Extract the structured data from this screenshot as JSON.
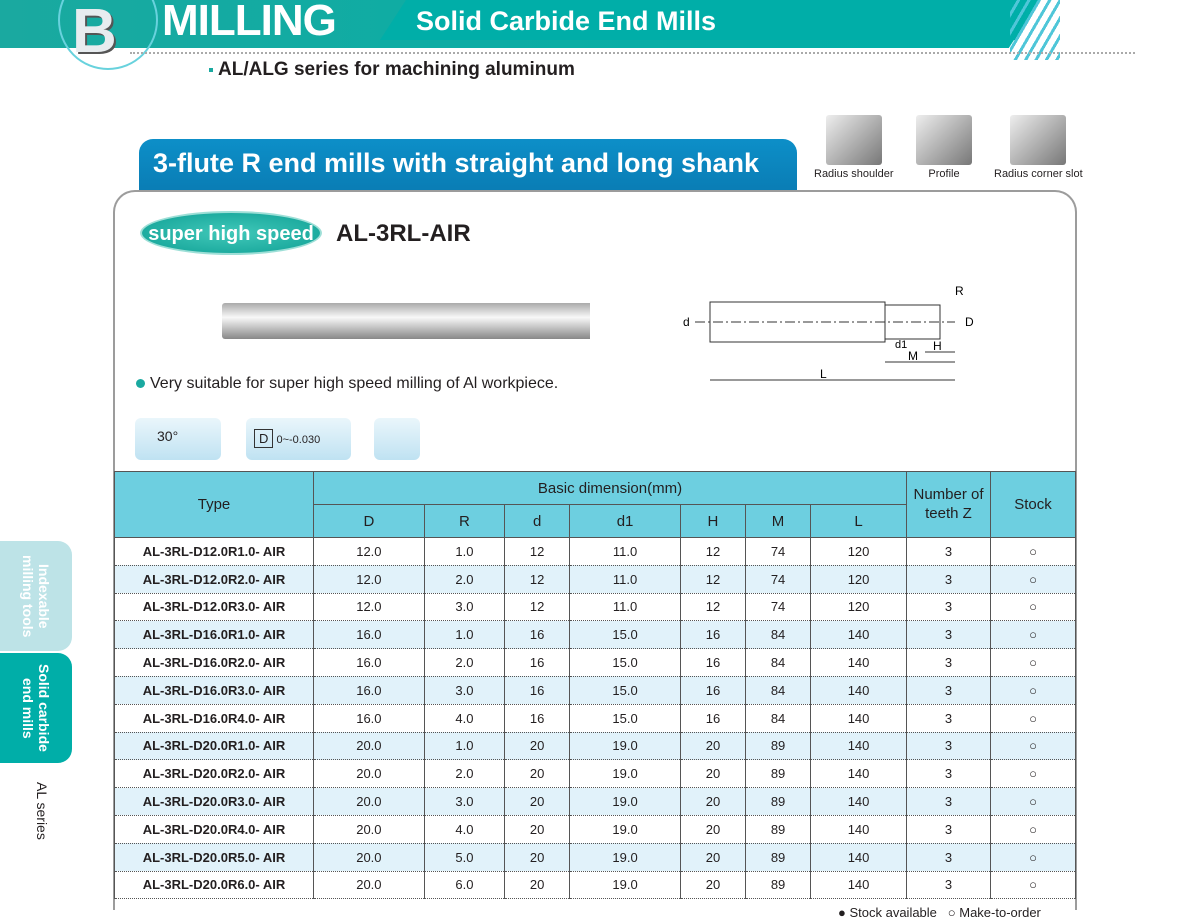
{
  "header": {
    "letter": "B",
    "section": "MILLING",
    "category": "Solid Carbide End Mills",
    "subtitle": "AL/ALG series for machining aluminum"
  },
  "title": "3-flute R end mills with straight and long shank",
  "applications": [
    "Radius shoulder",
    "Profile",
    "Radius corner slot"
  ],
  "product": {
    "badge": "super high speed",
    "model": "AL-3RL-AIR",
    "feature": "Very suitable for super high speed milling of Al workpiece.",
    "helix": "30°",
    "tolerance_label": "D",
    "tolerance": "0~-0.030"
  },
  "diagram": {
    "labels": [
      "R",
      "d",
      "D",
      "d1",
      "H",
      "M",
      "L"
    ]
  },
  "sidebar": {
    "tabs": [
      "Indexable milling tools",
      "Solid carbide end mills"
    ],
    "active": 1,
    "series": "AL series"
  },
  "table": {
    "group_header": "Basic dimension(mm)",
    "type_header": "Type",
    "teeth_header": "Number of teeth Z",
    "stock_header": "Stock",
    "columns": [
      "D",
      "R",
      "d",
      "d1",
      "H",
      "M",
      "L"
    ],
    "rows": [
      [
        "AL-3RL-D12.0R1.0- AIR",
        "12.0",
        "1.0",
        "12",
        "11.0",
        "12",
        "74",
        "120",
        "3",
        "○"
      ],
      [
        "AL-3RL-D12.0R2.0- AIR",
        "12.0",
        "2.0",
        "12",
        "11.0",
        "12",
        "74",
        "120",
        "3",
        "○"
      ],
      [
        "AL-3RL-D12.0R3.0- AIR",
        "12.0",
        "3.0",
        "12",
        "11.0",
        "12",
        "74",
        "120",
        "3",
        "○"
      ],
      [
        "AL-3RL-D16.0R1.0- AIR",
        "16.0",
        "1.0",
        "16",
        "15.0",
        "16",
        "84",
        "140",
        "3",
        "○"
      ],
      [
        "AL-3RL-D16.0R2.0- AIR",
        "16.0",
        "2.0",
        "16",
        "15.0",
        "16",
        "84",
        "140",
        "3",
        "○"
      ],
      [
        "AL-3RL-D16.0R3.0- AIR",
        "16.0",
        "3.0",
        "16",
        "15.0",
        "16",
        "84",
        "140",
        "3",
        "○"
      ],
      [
        "AL-3RL-D16.0R4.0- AIR",
        "16.0",
        "4.0",
        "16",
        "15.0",
        "16",
        "84",
        "140",
        "3",
        "○"
      ],
      [
        "AL-3RL-D20.0R1.0- AIR",
        "20.0",
        "1.0",
        "20",
        "19.0",
        "20",
        "89",
        "140",
        "3",
        "○"
      ],
      [
        "AL-3RL-D20.0R2.0- AIR",
        "20.0",
        "2.0",
        "20",
        "19.0",
        "20",
        "89",
        "140",
        "3",
        "○"
      ],
      [
        "AL-3RL-D20.0R3.0- AIR",
        "20.0",
        "3.0",
        "20",
        "19.0",
        "20",
        "89",
        "140",
        "3",
        "○"
      ],
      [
        "AL-3RL-D20.0R4.0- AIR",
        "20.0",
        "4.0",
        "20",
        "19.0",
        "20",
        "89",
        "140",
        "3",
        "○"
      ],
      [
        "AL-3RL-D20.0R5.0- AIR",
        "20.0",
        "5.0",
        "20",
        "19.0",
        "20",
        "89",
        "140",
        "3",
        "○"
      ],
      [
        "AL-3RL-D20.0R6.0- AIR",
        "20.0",
        "6.0",
        "20",
        "19.0",
        "20",
        "89",
        "140",
        "3",
        "○"
      ]
    ]
  },
  "legend": {
    "available": "Stock available",
    "order": "Make-to-order"
  },
  "colors": {
    "teal": "#00aea8",
    "blue": "#0d8fc8",
    "header_cell": "#6dcfe0",
    "row_alt": "#e1f2fa"
  }
}
